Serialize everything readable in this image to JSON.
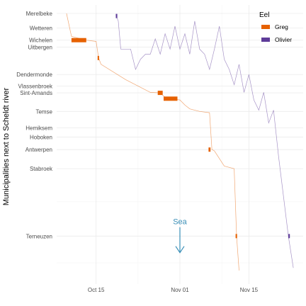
{
  "chart_data": {
    "type": "line",
    "title": "",
    "xlabel": "",
    "ylabel": "Municipalities next to Scheldt river",
    "x_axis": {
      "type": "date",
      "range": [
        "2014-10-07",
        "2014-11-26"
      ],
      "ticks": [
        {
          "value": "2014-10-15",
          "label": "Oct 15"
        },
        {
          "value": "2014-11-01",
          "label": "Nov 01"
        },
        {
          "value": "2014-11-15",
          "label": "Nov 15"
        }
      ]
    },
    "y_axis": {
      "unit": "km from Merelbeke",
      "range": [
        0,
        103
      ],
      "reversed": true,
      "ticks": [
        {
          "value": 0,
          "label": "Merelbeke"
        },
        {
          "value": 5.7,
          "label": "Wetteren"
        },
        {
          "value": 10.5,
          "label": "Wichelen"
        },
        {
          "value": 13.2,
          "label": "Uitbergen"
        },
        {
          "value": 24,
          "label": "Dendermonde"
        },
        {
          "value": 28.5,
          "label": "Vlassenbroek"
        },
        {
          "value": 31.2,
          "label": "Sint-Amands"
        },
        {
          "value": 38.5,
          "label": "Temse"
        },
        {
          "value": 45,
          "label": "Hemiksem"
        },
        {
          "value": 48.6,
          "label": "Hoboken"
        },
        {
          "value": 53.5,
          "label": "Antwerpen"
        },
        {
          "value": 61,
          "label": "Stabroek"
        },
        {
          "value": 87.5,
          "label": "Terneuzen"
        }
      ]
    },
    "grid": true,
    "legend": {
      "title": "Eel",
      "position": "top-right"
    },
    "annotation": {
      "text": "Sea",
      "x": "2014-11-01",
      "y_from": 84,
      "y_to": 94,
      "color": "#3a8fb7"
    },
    "series": [
      {
        "name": "Greg",
        "color": "#e66101",
        "points": [
          [
            "2014-10-09",
            0
          ],
          [
            "2014-10-10",
            9
          ],
          [
            "2014-10-13",
            10.5
          ],
          [
            "2014-10-15",
            11
          ],
          [
            "2014-10-15.5",
            17.5
          ],
          [
            "2014-10-16",
            20
          ],
          [
            "2014-10-21",
            26
          ],
          [
            "2014-10-26",
            31
          ],
          [
            "2014-10-28",
            31.2
          ],
          [
            "2014-10-29",
            33
          ],
          [
            "2014-10-30",
            33.5
          ],
          [
            "2014-11-01",
            34
          ],
          [
            "2014-11-02",
            36
          ],
          [
            "2014-11-03",
            37.5
          ],
          [
            "2014-11-05",
            38.5
          ],
          [
            "2014-11-07",
            39
          ],
          [
            "2014-11-07.5",
            53.5
          ],
          [
            "2014-11-08",
            54
          ],
          [
            "2014-11-10",
            60
          ],
          [
            "2014-11-12",
            61
          ],
          [
            "2014-11-12.5",
            87.5
          ],
          [
            "2014-11-13",
            101
          ]
        ],
        "stationary_periods": [
          {
            "start": "2014-10-10",
            "end": "2014-10-13",
            "y": 10.5
          },
          {
            "start": "2014-10-15.3",
            "end": "2014-10-15.6",
            "y": 17.5
          },
          {
            "start": "2014-10-27.5",
            "end": "2014-10-28.5",
            "y": 31.2
          },
          {
            "start": "2014-10-28.7",
            "end": "2014-10-31.5",
            "y": 33.5
          },
          {
            "start": "2014-11-06.8",
            "end": "2014-11-07.2",
            "y": 53.5
          },
          {
            "start": "2014-11-12.3",
            "end": "2014-11-12.6",
            "y": 87.5
          }
        ]
      },
      {
        "name": "Olivier",
        "color": "#5e3c99",
        "points": [
          [
            "2014-10-19",
            0.5
          ],
          [
            "2014-10-19.5",
            3
          ],
          [
            "2014-10-20",
            14
          ],
          [
            "2014-10-22",
            14
          ],
          [
            "2014-10-23",
            22
          ],
          [
            "2014-10-24",
            18
          ],
          [
            "2014-10-25",
            16
          ],
          [
            "2014-10-26",
            16
          ],
          [
            "2014-10-27",
            10
          ],
          [
            "2014-10-28",
            16
          ],
          [
            "2014-10-29",
            8
          ],
          [
            "2014-10-30",
            14
          ],
          [
            "2014-10-31",
            5
          ],
          [
            "2014-11-01",
            14
          ],
          [
            "2014-11-02",
            8
          ],
          [
            "2014-11-03",
            16
          ],
          [
            "2014-11-04",
            3
          ],
          [
            "2014-11-05",
            14
          ],
          [
            "2014-11-06",
            16
          ],
          [
            "2014-11-07",
            22
          ],
          [
            "2014-11-08",
            14
          ],
          [
            "2014-11-09",
            5
          ],
          [
            "2014-11-10",
            18
          ],
          [
            "2014-11-11",
            22
          ],
          [
            "2014-11-12",
            28
          ],
          [
            "2014-11-13",
            20
          ],
          [
            "2014-11-14",
            31
          ],
          [
            "2014-11-15",
            24
          ],
          [
            "2014-11-16",
            34
          ],
          [
            "2014-11-17",
            38
          ],
          [
            "2014-11-18",
            31
          ],
          [
            "2014-11-19",
            43
          ],
          [
            "2014-11-20",
            38
          ],
          [
            "2014-11-21",
            56
          ],
          [
            "2014-11-23",
            87.5
          ],
          [
            "2014-11-24",
            100
          ]
        ],
        "stationary_periods": [
          {
            "start": "2014-10-19",
            "end": "2014-10-19.3",
            "y": 1
          },
          {
            "start": "2014-11-23",
            "end": "2014-11-23.3",
            "y": 87.5
          }
        ]
      }
    ]
  }
}
